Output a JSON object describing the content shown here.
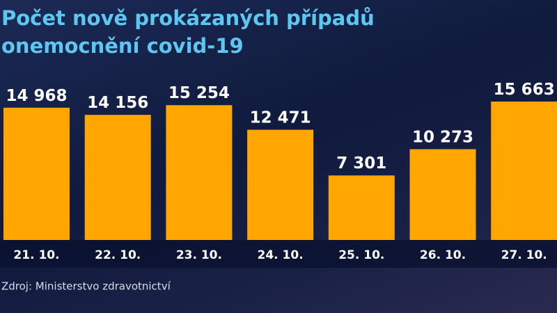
{
  "chart_data": {
    "type": "bar",
    "title": "Počet nově prokázaných případů onemocnění covid-19",
    "categories": [
      "21. 10.",
      "22. 10.",
      "23. 10.",
      "24. 10.",
      "25. 10.",
      "26. 10.",
      "27. 10."
    ],
    "values": [
      14968,
      14156,
      15254,
      12471,
      7301,
      10273,
      15663
    ],
    "value_labels": [
      "14 968",
      "14 156",
      "15 254",
      "12 471",
      "7 301",
      "10 273",
      "15 663"
    ],
    "color": "#ffa600",
    "source": "Zdroj: Ministerstvo zdravotnictví"
  }
}
